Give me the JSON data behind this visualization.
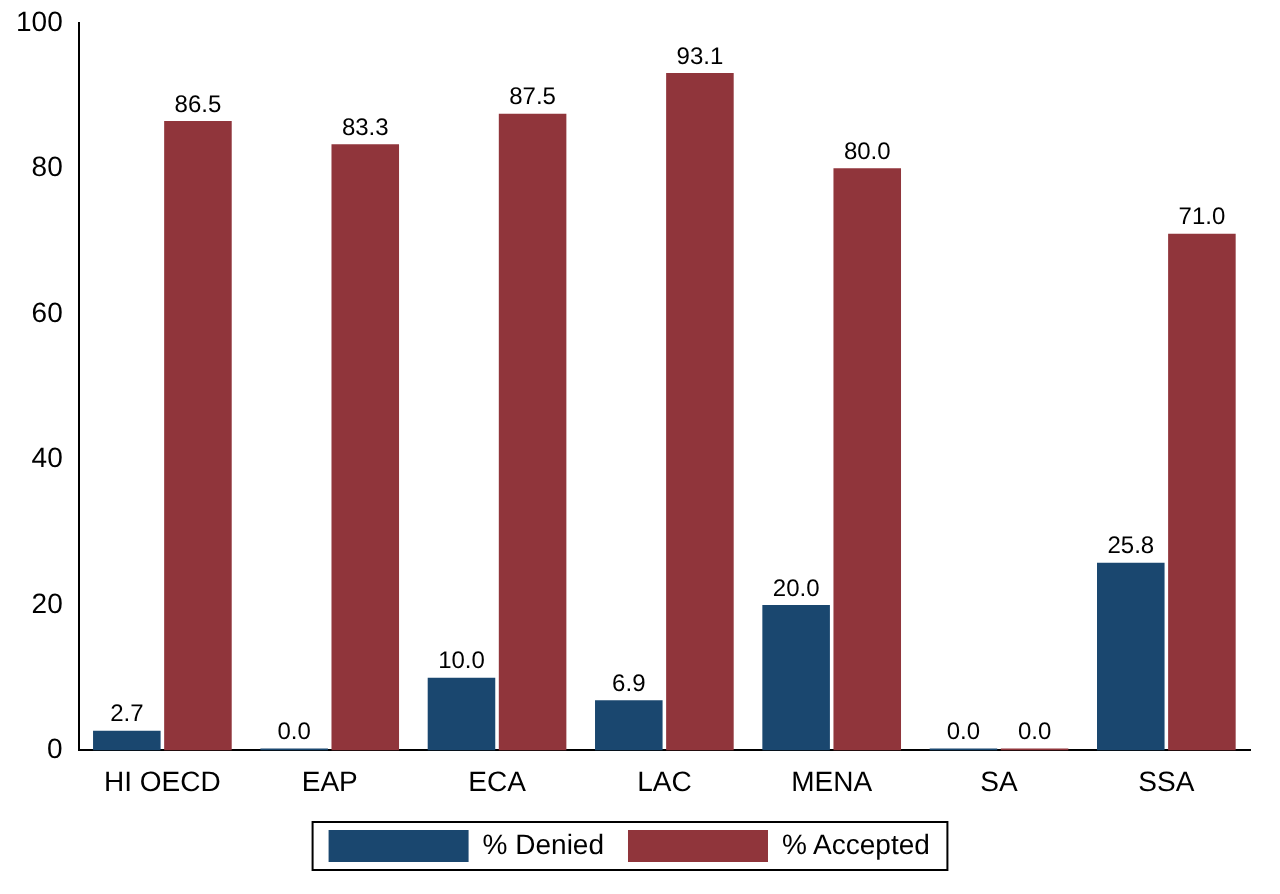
{
  "chart_data": {
    "type": "bar",
    "categories": [
      "HI OECD",
      "EAP",
      "ECA",
      "LAC",
      "MENA",
      "SA",
      "SSA"
    ],
    "series": [
      {
        "name": "% Denied",
        "color": "#1a476f",
        "values": [
          2.7,
          0.0,
          10.0,
          6.9,
          20.0,
          0.0,
          25.8
        ],
        "value_labels": [
          "2.7",
          "0.0",
          "10.0",
          "6.9",
          "20.0",
          "0.0",
          "25.8"
        ]
      },
      {
        "name": "% Accepted",
        "color": "#90353b",
        "values": [
          86.5,
          83.3,
          87.5,
          93.1,
          80.0,
          0.0,
          71.0
        ],
        "value_labels": [
          "86.5",
          "83.3",
          "87.5",
          "93.1",
          "80.0",
          "0.0",
          "71.0"
        ]
      }
    ],
    "ylim": [
      0,
      100
    ],
    "yticks": [
      0,
      20,
      40,
      60,
      80,
      100
    ],
    "grid": false,
    "legend": "bottom"
  }
}
